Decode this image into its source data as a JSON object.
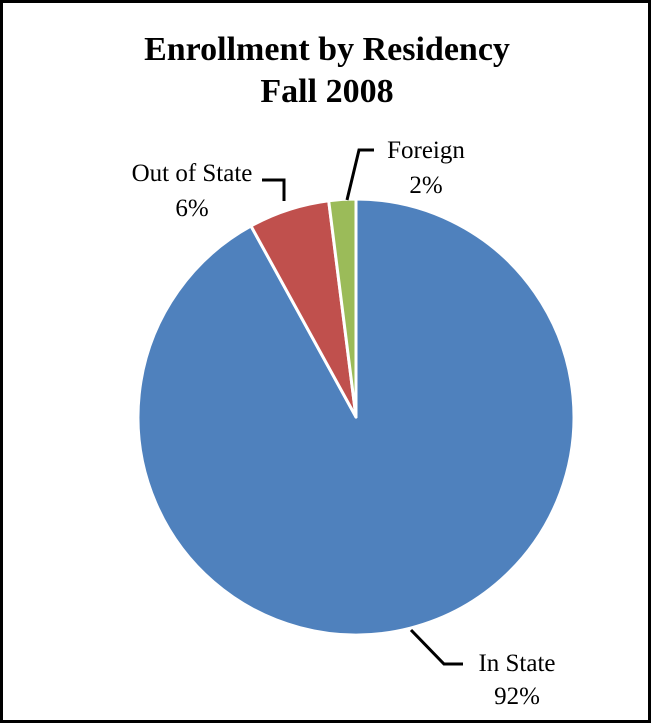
{
  "chart_data": {
    "type": "pie",
    "title": [
      "Enrollment by Residency",
      "Fall 2008"
    ],
    "categories": [
      "In State",
      "Out of State",
      "Foreign"
    ],
    "values": [
      92,
      6,
      2
    ],
    "value_labels": [
      "92%",
      "6%",
      "2%"
    ],
    "colors": [
      "#4F81BD",
      "#C0504D",
      "#9BBB59"
    ],
    "start_angle": "12 o'clock",
    "direction": "clockwise",
    "legend": "none"
  }
}
